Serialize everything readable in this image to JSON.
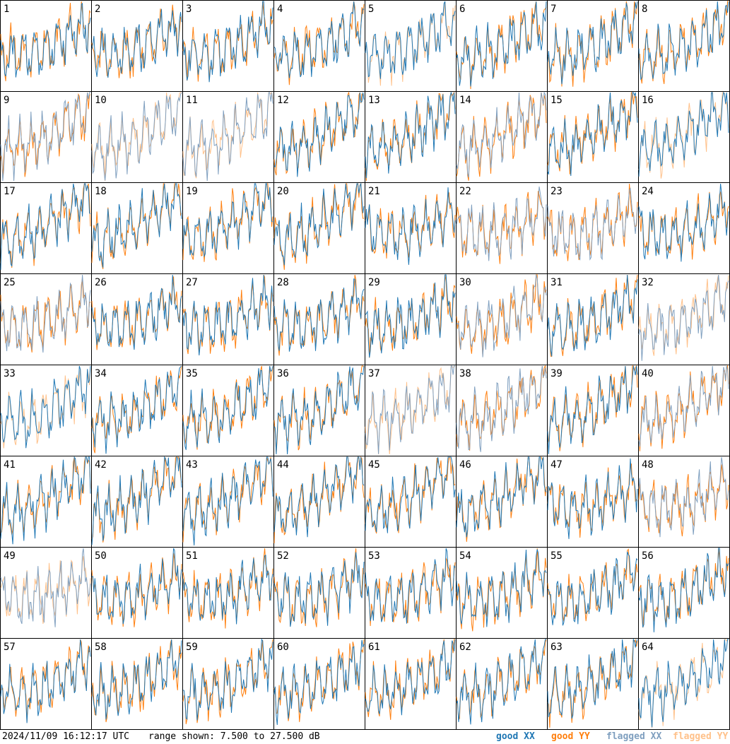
{
  "footer": {
    "timestamp": "2024/11/09 16:12:17 UTC",
    "range_text": "range shown: 7.500 to 27.500 dB"
  },
  "legend": {
    "good_xx": "good XX",
    "good_yy": "good YY",
    "flagged_xx": "flagged XX",
    "flagged_yy": "flagged YY"
  },
  "colors": {
    "good_xx": "#1f77b4",
    "good_yy": "#ff7f0e",
    "flagged_xx": "#7f9fbf",
    "flagged_yy": "#ffc18a",
    "frame": "#000000"
  },
  "chart_data": {
    "type": "line",
    "grid_layout": "8x8 small multiples",
    "ylim": [
      7.5,
      27.5
    ],
    "unit": "dB",
    "panels": [
      {
        "id": 1,
        "xx": "good",
        "yy": "good"
      },
      {
        "id": 2,
        "xx": "good",
        "yy": "good"
      },
      {
        "id": 3,
        "xx": "good",
        "yy": "good"
      },
      {
        "id": 4,
        "xx": "good",
        "yy": "good"
      },
      {
        "id": 5,
        "xx": "good",
        "yy": "flagged"
      },
      {
        "id": 6,
        "xx": "good",
        "yy": "good"
      },
      {
        "id": 7,
        "xx": "good",
        "yy": "good"
      },
      {
        "id": 8,
        "xx": "good",
        "yy": "good"
      },
      {
        "id": 9,
        "xx": "flagged",
        "yy": "good"
      },
      {
        "id": 10,
        "xx": "flagged",
        "yy": "flagged"
      },
      {
        "id": 11,
        "xx": "flagged",
        "yy": "flagged"
      },
      {
        "id": 12,
        "xx": "good",
        "yy": "good"
      },
      {
        "id": 13,
        "xx": "good",
        "yy": "good"
      },
      {
        "id": 14,
        "xx": "flagged",
        "yy": "good"
      },
      {
        "id": 15,
        "xx": "good",
        "yy": "good"
      },
      {
        "id": 16,
        "xx": "good",
        "yy": "flagged"
      },
      {
        "id": 17,
        "xx": "good",
        "yy": "good"
      },
      {
        "id": 18,
        "xx": "good",
        "yy": "good"
      },
      {
        "id": 19,
        "xx": "good",
        "yy": "good"
      },
      {
        "id": 20,
        "xx": "good",
        "yy": "good"
      },
      {
        "id": 21,
        "xx": "good",
        "yy": "good"
      },
      {
        "id": 22,
        "xx": "flagged",
        "yy": "good"
      },
      {
        "id": 23,
        "xx": "flagged",
        "yy": "good"
      },
      {
        "id": 24,
        "xx": "good",
        "yy": "good"
      },
      {
        "id": 25,
        "xx": "flagged",
        "yy": "good"
      },
      {
        "id": 26,
        "xx": "good",
        "yy": "good"
      },
      {
        "id": 27,
        "xx": "good",
        "yy": "good"
      },
      {
        "id": 28,
        "xx": "good",
        "yy": "good"
      },
      {
        "id": 29,
        "xx": "good",
        "yy": "good"
      },
      {
        "id": 30,
        "xx": "flagged",
        "yy": "good"
      },
      {
        "id": 31,
        "xx": "good",
        "yy": "good"
      },
      {
        "id": 32,
        "xx": "flagged",
        "yy": "flagged"
      },
      {
        "id": 33,
        "xx": "good",
        "yy": "flagged"
      },
      {
        "id": 34,
        "xx": "good",
        "yy": "good"
      },
      {
        "id": 35,
        "xx": "good",
        "yy": "good"
      },
      {
        "id": 36,
        "xx": "good",
        "yy": "good"
      },
      {
        "id": 37,
        "xx": "flagged",
        "yy": "flagged"
      },
      {
        "id": 38,
        "xx": "flagged",
        "yy": "good"
      },
      {
        "id": 39,
        "xx": "good",
        "yy": "good"
      },
      {
        "id": 40,
        "xx": "flagged",
        "yy": "good"
      },
      {
        "id": 41,
        "xx": "good",
        "yy": "good"
      },
      {
        "id": 42,
        "xx": "good",
        "yy": "good"
      },
      {
        "id": 43,
        "xx": "good",
        "yy": "good"
      },
      {
        "id": 44,
        "xx": "good",
        "yy": "good"
      },
      {
        "id": 45,
        "xx": "good",
        "yy": "good"
      },
      {
        "id": 46,
        "xx": "good",
        "yy": "good"
      },
      {
        "id": 47,
        "xx": "good",
        "yy": "good"
      },
      {
        "id": 48,
        "xx": "flagged",
        "yy": "good"
      },
      {
        "id": 49,
        "xx": "flagged",
        "yy": "flagged"
      },
      {
        "id": 50,
        "xx": "good",
        "yy": "good"
      },
      {
        "id": 51,
        "xx": "good",
        "yy": "good"
      },
      {
        "id": 52,
        "xx": "good",
        "yy": "good"
      },
      {
        "id": 53,
        "xx": "good",
        "yy": "good"
      },
      {
        "id": 54,
        "xx": "good",
        "yy": "good"
      },
      {
        "id": 55,
        "xx": "good",
        "yy": "good"
      },
      {
        "id": 56,
        "xx": "good",
        "yy": "good"
      },
      {
        "id": 57,
        "xx": "good",
        "yy": "good"
      },
      {
        "id": 58,
        "xx": "good",
        "yy": "good"
      },
      {
        "id": 59,
        "xx": "good",
        "yy": "good"
      },
      {
        "id": 60,
        "xx": "good",
        "yy": "good"
      },
      {
        "id": 61,
        "xx": "good",
        "yy": "good"
      },
      {
        "id": 62,
        "xx": "good",
        "yy": "good"
      },
      {
        "id": 63,
        "xx": "good",
        "yy": "good"
      },
      {
        "id": 64,
        "xx": "good",
        "yy": "flagged"
      }
    ]
  }
}
